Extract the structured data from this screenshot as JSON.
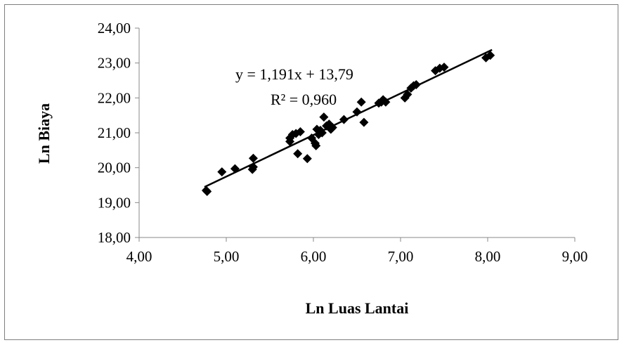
{
  "chart_data": {
    "type": "scatter",
    "xlabel": "Ln Luas Lantai",
    "ylabel": "Ln Biaya",
    "xlim": [
      4,
      9
    ],
    "ylim": [
      18,
      24
    ],
    "x_ticks": [
      "4,00",
      "5,00",
      "6,00",
      "7,00",
      "8,00",
      "9,00"
    ],
    "y_ticks": [
      "18,00",
      "19,00",
      "20,00",
      "21,00",
      "22,00",
      "23,00",
      "24,00"
    ],
    "grid": false,
    "legend": "none",
    "marker": "diamond",
    "marker_color": "#000000",
    "trendline": {
      "equation": "y = 1,191x + 13,79",
      "r_squared": "R² = 0,960",
      "slope": 1.191,
      "intercept": 13.79,
      "x_range": [
        4.75,
        8.05
      ]
    },
    "series": [
      {
        "points": [
          [
            4.77,
            19.35
          ],
          [
            4.78,
            19.32
          ],
          [
            4.95,
            19.88
          ],
          [
            5.1,
            19.97
          ],
          [
            5.3,
            19.95
          ],
          [
            5.31,
            20.02
          ],
          [
            5.31,
            20.27
          ],
          [
            5.73,
            20.75
          ],
          [
            5.73,
            20.85
          ],
          [
            5.76,
            20.95
          ],
          [
            5.8,
            20.98
          ],
          [
            5.82,
            20.4
          ],
          [
            5.85,
            21.03
          ],
          [
            5.93,
            20.26
          ],
          [
            5.98,
            20.85
          ],
          [
            6.02,
            20.7
          ],
          [
            6.03,
            20.63
          ],
          [
            6.04,
            21.1
          ],
          [
            6.06,
            20.95
          ],
          [
            6.08,
            21.07
          ],
          [
            6.1,
            21.0
          ],
          [
            6.12,
            21.45
          ],
          [
            6.15,
            21.2
          ],
          [
            6.18,
            21.25
          ],
          [
            6.2,
            21.1
          ],
          [
            6.22,
            21.15
          ],
          [
            6.35,
            21.38
          ],
          [
            6.5,
            21.6
          ],
          [
            6.55,
            21.88
          ],
          [
            6.58,
            21.3
          ],
          [
            6.75,
            21.85
          ],
          [
            6.78,
            21.88
          ],
          [
            6.8,
            21.95
          ],
          [
            6.83,
            21.88
          ],
          [
            7.05,
            22.0
          ],
          [
            7.08,
            22.1
          ],
          [
            7.12,
            22.28
          ],
          [
            7.15,
            22.35
          ],
          [
            7.18,
            22.38
          ],
          [
            7.4,
            22.78
          ],
          [
            7.45,
            22.85
          ],
          [
            7.5,
            22.88
          ],
          [
            7.98,
            23.15
          ],
          [
            8.03,
            23.22
          ]
        ]
      }
    ]
  }
}
